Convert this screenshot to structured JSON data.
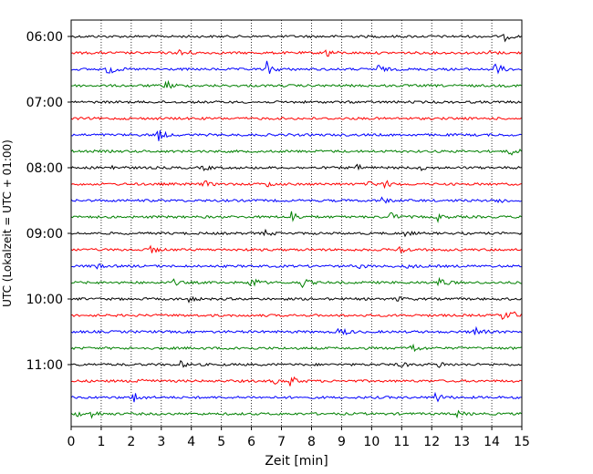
{
  "chart_data": {
    "type": "line",
    "title": "",
    "xlabel": "Zeit  [min]",
    "ylabel": "UTC (Lokalzeit = UTC + 01:00)",
    "xlim": [
      0,
      15
    ],
    "x_ticks": [
      "0",
      "1",
      "2",
      "3",
      "4",
      "5",
      "6",
      "7",
      "8",
      "9",
      "10",
      "11",
      "12",
      "13",
      "14",
      "15"
    ],
    "y_ticks": [
      "06:00",
      "07:00",
      "08:00",
      "09:00",
      "10:00",
      "11:00"
    ],
    "grid": "vertical dotted lines at each minute",
    "trace_interval_minutes": 15,
    "colors": [
      "#000000",
      "#ff0000",
      "#0000ff",
      "#008000"
    ],
    "traces": [
      {
        "start": "06:00",
        "color": "#000000",
        "events": [
          {
            "t": 14.4,
            "amp": 5
          }
        ]
      },
      {
        "start": "06:15",
        "color": "#ff0000",
        "events": [
          {
            "t": 3.6,
            "amp": 9
          },
          {
            "t": 8.4,
            "amp": 9
          },
          {
            "t": 13.8,
            "amp": 4
          }
        ]
      },
      {
        "start": "06:30",
        "color": "#0000ff",
        "events": [
          {
            "t": 1.2,
            "amp": 9
          },
          {
            "t": 6.5,
            "amp": 9
          },
          {
            "t": 10.2,
            "amp": 5
          },
          {
            "t": 14.1,
            "amp": 9
          }
        ]
      },
      {
        "start": "06:45",
        "color": "#008000",
        "events": [
          {
            "t": 3.1,
            "amp": 9
          }
        ]
      },
      {
        "start": "07:00",
        "color": "#000000",
        "events": []
      },
      {
        "start": "07:15",
        "color": "#ff0000",
        "events": []
      },
      {
        "start": "07:30",
        "color": "#0000ff",
        "events": [
          {
            "t": 2.85,
            "amp": 9
          }
        ]
      },
      {
        "start": "07:45",
        "color": "#008000",
        "events": [
          {
            "t": 14.6,
            "amp": 6
          }
        ]
      },
      {
        "start": "08:00",
        "color": "#000000",
        "events": [
          {
            "t": 1.3,
            "amp": 3
          },
          {
            "t": 4.4,
            "amp": 3
          },
          {
            "t": 9.5,
            "amp": 3
          },
          {
            "t": 11.6,
            "amp": 3
          }
        ]
      },
      {
        "start": "08:15",
        "color": "#ff0000",
        "events": [
          {
            "t": 4.4,
            "amp": 4
          },
          {
            "t": 6.5,
            "amp": 3
          },
          {
            "t": 9.9,
            "amp": 4
          },
          {
            "t": 10.4,
            "amp": 5
          }
        ]
      },
      {
        "start": "08:30",
        "color": "#0000ff",
        "events": [
          {
            "t": 10.3,
            "amp": 4
          },
          {
            "t": 14.2,
            "amp": 4
          }
        ]
      },
      {
        "start": "08:45",
        "color": "#008000",
        "events": [
          {
            "t": 7.3,
            "amp": 8
          },
          {
            "t": 10.6,
            "amp": 6
          },
          {
            "t": 12.2,
            "amp": 4
          }
        ]
      },
      {
        "start": "09:00",
        "color": "#000000",
        "events": [
          {
            "t": 6.4,
            "amp": 4
          },
          {
            "t": 11.1,
            "amp": 3
          }
        ]
      },
      {
        "start": "09:15",
        "color": "#ff0000",
        "events": [
          {
            "t": 2.55,
            "amp": 7
          },
          {
            "t": 10.9,
            "amp": 6
          }
        ]
      },
      {
        "start": "09:30",
        "color": "#0000ff",
        "events": [
          {
            "t": 0.75,
            "amp": 4
          },
          {
            "t": 9.5,
            "amp": 3
          },
          {
            "t": 11.1,
            "amp": 4
          }
        ]
      },
      {
        "start": "09:45",
        "color": "#008000",
        "events": [
          {
            "t": 3.35,
            "amp": 4
          },
          {
            "t": 5.95,
            "amp": 9
          },
          {
            "t": 7.6,
            "amp": 9
          },
          {
            "t": 12.2,
            "amp": 9
          }
        ]
      },
      {
        "start": "10:00",
        "color": "#000000",
        "events": [
          {
            "t": 3.9,
            "amp": 3
          },
          {
            "t": 10.8,
            "amp": 3
          }
        ]
      },
      {
        "start": "10:15",
        "color": "#ff0000",
        "events": [
          {
            "t": 14.3,
            "amp": 6
          },
          {
            "t": 14.6,
            "amp": 6
          }
        ]
      },
      {
        "start": "10:30",
        "color": "#0000ff",
        "events": [
          {
            "t": 8.9,
            "amp": 8
          },
          {
            "t": 13.4,
            "amp": 8
          }
        ]
      },
      {
        "start": "10:45",
        "color": "#008000",
        "events": [
          {
            "t": 5.4,
            "amp": 3
          },
          {
            "t": 11.25,
            "amp": 9
          }
        ]
      },
      {
        "start": "11:00",
        "color": "#000000",
        "events": [
          {
            "t": 3.6,
            "amp": 4
          },
          {
            "t": 10.9,
            "amp": 4
          },
          {
            "t": 12.2,
            "amp": 4
          }
        ]
      },
      {
        "start": "11:15",
        "color": "#ff0000",
        "events": [
          {
            "t": 2.2,
            "amp": 8
          },
          {
            "t": 6.7,
            "amp": 4
          },
          {
            "t": 7.25,
            "amp": 8
          }
        ]
      },
      {
        "start": "11:30",
        "color": "#0000ff",
        "events": [
          {
            "t": 2.05,
            "amp": 8
          },
          {
            "t": 12.1,
            "amp": 7
          }
        ]
      },
      {
        "start": "11:45",
        "color": "#008000",
        "events": [
          {
            "t": 0.1,
            "amp": 4
          },
          {
            "t": 0.65,
            "amp": 5
          },
          {
            "t": 12.8,
            "amp": 4
          }
        ]
      }
    ]
  }
}
